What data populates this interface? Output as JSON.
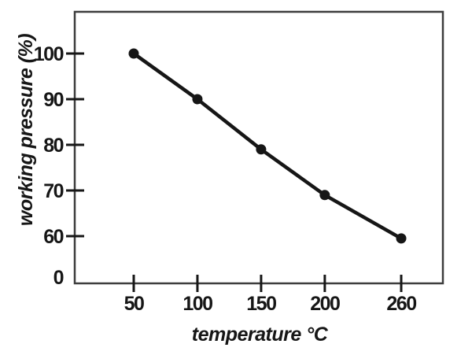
{
  "chart_data": {
    "type": "line",
    "x": [
      50,
      100,
      150,
      200,
      260
    ],
    "values": [
      100,
      90,
      79,
      69,
      59.5
    ],
    "xlabel": "temperature °C",
    "ylabel": "working pressure (%)",
    "xticks": [
      50,
      100,
      150,
      200,
      260
    ],
    "yticks": [
      100,
      90,
      80,
      70,
      60,
      0
    ],
    "xlim": [
      0,
      290
    ],
    "ylim_visible": [
      60,
      100
    ],
    "axis_break": "0 label sits at the origin; visible linear scale spans 60-100",
    "grid": false,
    "legend": false,
    "line_color": "#161616",
    "marker": "filled-circle",
    "marker_color": "#161616",
    "axis_color": "#3d3d3d",
    "background": "#ffffff"
  }
}
